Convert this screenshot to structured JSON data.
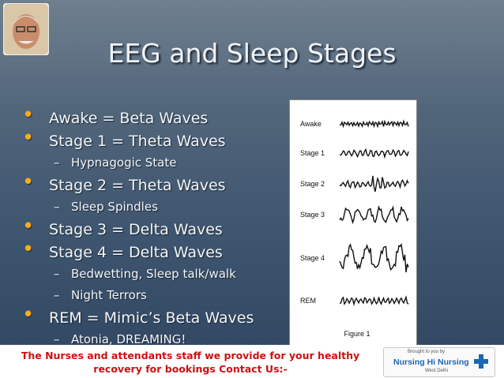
{
  "title": "EEG and Sleep Stages",
  "bullets": [
    {
      "level": 1,
      "text": "Awake = Beta Waves"
    },
    {
      "level": 1,
      "text": "Stage 1 = Theta Waves"
    },
    {
      "level": 2,
      "text": "Hypnagogic State"
    },
    {
      "level": 1,
      "text": "Stage 2 = Theta Waves"
    },
    {
      "level": 2,
      "text": "Sleep Spindles"
    },
    {
      "level": 1,
      "text": "Stage 3 = Delta Waves"
    },
    {
      "level": 1,
      "text": "Stage 4 = Delta Waves"
    },
    {
      "level": 2,
      "text": "Bedwetting, Sleep talk/walk"
    },
    {
      "level": 2,
      "text": "Night Terrors"
    },
    {
      "level": 1,
      "text": "REM = Mimic’s Beta Waves"
    },
    {
      "level": 2,
      "text": "Atonia, DREAMING!"
    }
  ],
  "figure": {
    "labels": [
      "Awake",
      "Stage 1",
      "Stage 2",
      "Stage 3",
      "Stage 4",
      "REM"
    ],
    "caption": "Figure 1"
  },
  "footer": {
    "lines": [
      "The Nurses and attendants staff we provide for your healthy",
      "recovery for bookings Contact Us:-"
    ],
    "logo": {
      "tagline": "Brought to you by",
      "name": "Nursing Hi Nursing",
      "place": "West Delhi"
    }
  }
}
